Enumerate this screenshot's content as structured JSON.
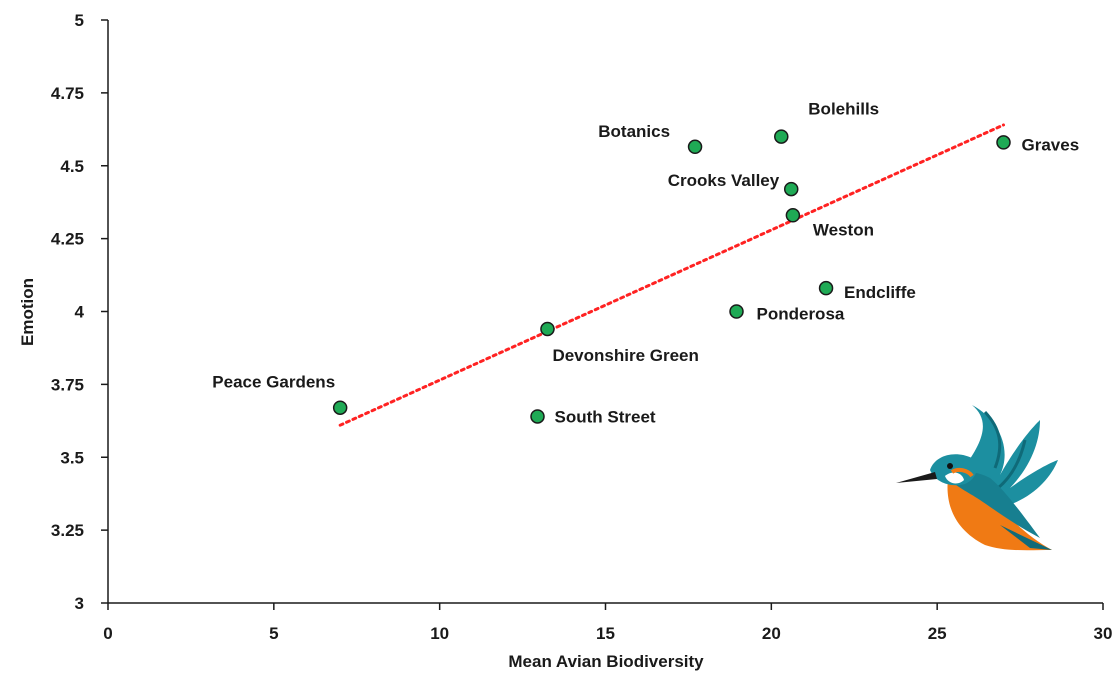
{
  "chart_data": {
    "type": "scatter",
    "title": "",
    "xlabel": "Mean Avian Biodiversity",
    "ylabel": "Emotion",
    "xlim": [
      0,
      30
    ],
    "ylim": [
      3,
      5
    ],
    "x_ticks": [
      "0",
      "5",
      "10",
      "15",
      "20",
      "25",
      "30"
    ],
    "y_ticks": [
      "3",
      "3.25",
      "3.5",
      "3.75",
      "4",
      "4.25",
      "4.5",
      "4.75",
      "5"
    ],
    "grid": false,
    "legend": "none",
    "series": [
      {
        "points": [
          {
            "label": "Peace Gardens",
            "x": 7.0,
            "y": 3.67
          },
          {
            "label": "South Street",
            "x": 12.95,
            "y": 3.64
          },
          {
            "label": "Devonshire Green",
            "x": 13.25,
            "y": 3.94
          },
          {
            "label": "Botanics",
            "x": 17.7,
            "y": 4.565
          },
          {
            "label": "Ponderosa",
            "x": 18.95,
            "y": 4.0
          },
          {
            "label": "Bolehills",
            "x": 20.3,
            "y": 4.6
          },
          {
            "label": "Crooks Valley",
            "x": 20.6,
            "y": 4.42
          },
          {
            "label": "Weston",
            "x": 20.65,
            "y": 4.33
          },
          {
            "label": "Endcliffe",
            "x": 21.65,
            "y": 4.08
          },
          {
            "label": "Graves",
            "x": 27.0,
            "y": 4.58
          }
        ]
      }
    ],
    "trendline": {
      "style": "dotted",
      "x": [
        7.0,
        27.0
      ],
      "y": [
        3.61,
        4.64
      ]
    },
    "colors": {
      "marker_fill": "#1faa55",
      "marker_edge": "#1a1a1a",
      "trendline": "#ff2222",
      "axis": "#1a1a1a"
    },
    "decoration": "kingfisher-illustration"
  }
}
